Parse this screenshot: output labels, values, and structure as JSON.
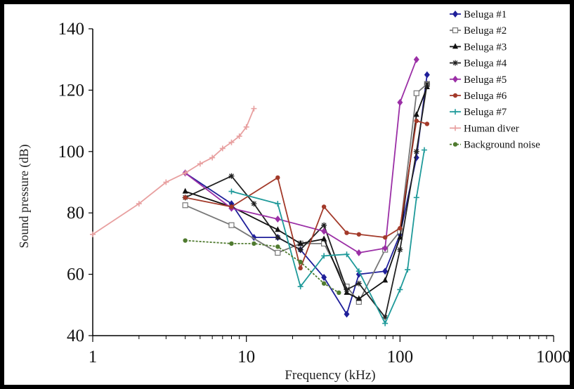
{
  "chart_data": {
    "type": "line",
    "xlabel": "Frequency (kHz)",
    "ylabel": "Sound pressure (dB)",
    "xscale": "log",
    "xlim": [
      1,
      1000
    ],
    "ylim": [
      40,
      140
    ],
    "x_ticks": [
      1,
      10,
      100,
      1000
    ],
    "x_tick_labels": [
      "1",
      "10",
      "100",
      "1000"
    ],
    "y_ticks": [
      40,
      60,
      80,
      100,
      120,
      140
    ],
    "y_tick_labels": [
      "40",
      "60",
      "80",
      "100",
      "120",
      "140"
    ],
    "grid": false,
    "legend_position": "top-right",
    "series": [
      {
        "name": "Beluga #1",
        "color": "#1f1f9a",
        "marker": "diamond",
        "dashed": false,
        "x": [
          4,
          8,
          11.2,
          16,
          22.5,
          32,
          45,
          54,
          80,
          100,
          128,
          150
        ],
        "y": [
          93,
          83,
          72,
          72,
          68,
          59,
          47,
          60,
          61,
          73,
          98,
          125
        ]
      },
      {
        "name": "Beluga #2",
        "color": "#777777",
        "marker": "square-open",
        "dashed": false,
        "x": [
          4,
          8,
          16,
          22.5,
          32,
          45,
          54,
          80,
          100,
          128,
          150
        ],
        "y": [
          82.5,
          76,
          67,
          70,
          70,
          56,
          51,
          68,
          74,
          119,
          122
        ]
      },
      {
        "name": "Beluga #3",
        "color": "#111111",
        "marker": "triangle",
        "dashed": false,
        "x": [
          4,
          8,
          16,
          22.5,
          32,
          45,
          54,
          80,
          100,
          128,
          150
        ],
        "y": [
          87,
          82,
          74.5,
          70,
          71.5,
          54,
          52,
          58,
          72,
          112,
          121
        ]
      },
      {
        "name": "Beluga #4",
        "color": "#222222",
        "marker": "asterisk",
        "dashed": false,
        "x": [
          4,
          8,
          11.2,
          16,
          22.5,
          32,
          45,
          54,
          80,
          100,
          128,
          150
        ],
        "y": [
          85,
          92,
          83,
          72,
          68,
          76,
          55,
          57,
          46,
          68,
          100,
          122
        ]
      },
      {
        "name": "Beluga #5",
        "color": "#9b2fa6",
        "marker": "diamond",
        "dashed": false,
        "x": [
          4,
          8,
          16,
          32,
          54,
          80,
          100,
          128
        ],
        "y": [
          93,
          81.5,
          78,
          74,
          67,
          68.5,
          116,
          130
        ]
      },
      {
        "name": "Beluga #6",
        "color": "#a33a2a",
        "marker": "circle",
        "dashed": false,
        "x": [
          4,
          8,
          16,
          22.5,
          32,
          45,
          54,
          80,
          100,
          128,
          150
        ],
        "y": [
          85,
          82,
          91.5,
          62,
          82,
          73.5,
          73,
          72,
          75,
          110,
          109
        ]
      },
      {
        "name": "Beluga #7",
        "color": "#1f9a9a",
        "marker": "plus",
        "dashed": false,
        "x": [
          8,
          16,
          22.5,
          32,
          45,
          54,
          80,
          100,
          112,
          128,
          144
        ],
        "y": [
          87,
          83,
          56,
          66,
          66.5,
          61,
          44,
          55,
          61.5,
          85,
          100.5
        ]
      },
      {
        "name": "Human diver",
        "color": "#e8a0a0",
        "marker": "plus",
        "dashed": false,
        "x": [
          1,
          2,
          3,
          4,
          5,
          6,
          7,
          8,
          9,
          10,
          11.2
        ],
        "y": [
          73,
          83,
          90,
          93,
          96,
          98,
          101,
          103,
          105,
          108,
          114
        ]
      },
      {
        "name": "Background noise",
        "color": "#4f7a2f",
        "marker": "circle",
        "dashed": true,
        "x": [
          4,
          8,
          11.2,
          16,
          22.5,
          32,
          40
        ],
        "y": [
          71,
          70,
          70,
          69,
          64,
          57,
          54
        ]
      }
    ]
  }
}
